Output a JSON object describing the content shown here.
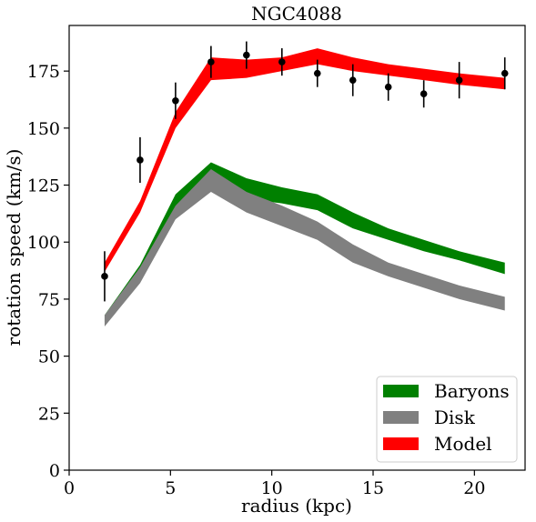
{
  "chart_data": {
    "type": "area",
    "title": "NGC4088",
    "xlabel": "radius (kpc)",
    "ylabel": "rotation speed (km/s)",
    "xlim": [
      0,
      22.5
    ],
    "ylim": [
      0,
      195
    ],
    "xticks": [
      0,
      5,
      10,
      15,
      20
    ],
    "yticks": [
      0,
      25,
      50,
      75,
      100,
      125,
      150,
      175
    ],
    "grid": false,
    "legend_position": "lower-right",
    "bands": [
      {
        "name": "Baryons",
        "color": "#008000",
        "x": [
          1.75,
          3.5,
          5.25,
          7.0,
          8.75,
          10.5,
          12.25,
          14.0,
          15.75,
          17.5,
          19.25,
          21.5
        ],
        "lower": [
          65,
          85,
          112,
          126,
          119,
          117,
          114,
          106,
          101,
          96,
          92,
          86
        ],
        "upper": [
          68,
          90,
          121,
          135,
          128,
          124,
          121,
          113,
          106,
          101,
          96,
          91
        ]
      },
      {
        "name": "Disk",
        "color": "#808080",
        "x": [
          1.75,
          3.5,
          5.25,
          7.0,
          8.75,
          10.5,
          12.25,
          14.0,
          15.75,
          17.5,
          19.25,
          21.5
        ],
        "lower": [
          63,
          82,
          110,
          122,
          113,
          107,
          101,
          91,
          85,
          80,
          75,
          70
        ],
        "upper": [
          68,
          89,
          116,
          132,
          122,
          116,
          109,
          99,
          91,
          86,
          81,
          76
        ]
      },
      {
        "name": "Model",
        "color": "#ff0000",
        "x": [
          1.75,
          3.5,
          5.25,
          7.0,
          8.75,
          10.5,
          12.25,
          14.0,
          15.75,
          17.5,
          19.25,
          21.5
        ],
        "lower": [
          87,
          113,
          150,
          171,
          172,
          175,
          178,
          175,
          173,
          171,
          169,
          167
        ],
        "upper": [
          91,
          118,
          157,
          181,
          180,
          181,
          185,
          181,
          178,
          176,
          174,
          172
        ]
      }
    ],
    "observations": {
      "x": [
        1.75,
        3.5,
        5.25,
        7.0,
        8.75,
        10.5,
        12.25,
        14.0,
        15.75,
        17.5,
        19.25,
        21.5
      ],
      "y": [
        85,
        136,
        162,
        179,
        182,
        179,
        174,
        171,
        168,
        165,
        171,
        174
      ],
      "yerr": [
        11,
        10,
        8,
        7,
        6,
        6,
        6,
        7,
        6,
        6,
        8,
        7
      ],
      "color": "#000000"
    }
  }
}
